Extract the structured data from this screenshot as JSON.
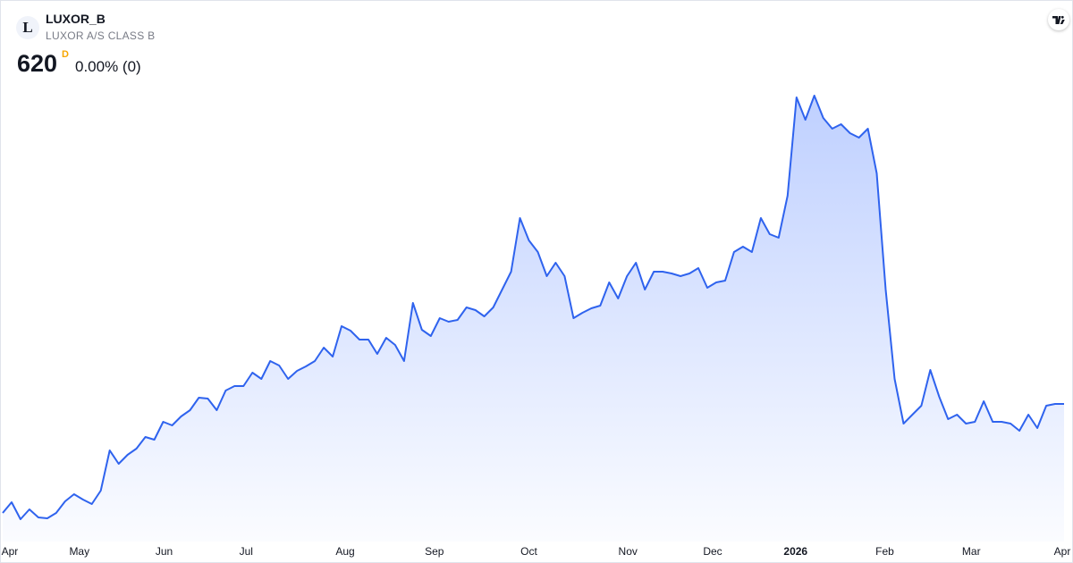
{
  "header": {
    "logo_letter": "L",
    "symbol": "LUXOR_B",
    "name": "LUXOR A/S CLASS B",
    "price": "620",
    "interval": "D",
    "change": "0.00% (0)"
  },
  "chart_data": {
    "type": "area",
    "series": [
      {
        "name": "LUXOR_B",
        "color": "#2f63ee",
        "values": [
          376,
          400,
          362,
          384,
          366,
          364,
          376,
          402,
          418,
          406,
          396,
          426,
          516,
          486,
          506,
          520,
          546,
          540,
          580,
          572,
          592,
          606,
          634,
          632,
          606,
          650,
          660,
          660,
          690,
          676,
          716,
          706,
          676,
          694,
          704,
          716,
          746,
          726,
          794,
          784,
          764,
          764,
          732,
          768,
          752,
          716,
          846,
          786,
          772,
          812,
          804,
          808,
          836,
          830,
          816,
          836,
          876,
          916,
          1036,
          986,
          960,
          906,
          936,
          906,
          812,
          824,
          834,
          840,
          892,
          856,
          906,
          936,
          876,
          916,
          916,
          912,
          906,
          912,
          924,
          880,
          892,
          896,
          960,
          972,
          960,
          1036,
          1000,
          992,
          1086,
          1306,
          1256,
          1310,
          1260,
          1236,
          1246,
          1226,
          1216,
          1236,
          1136,
          876,
          676,
          576,
          596,
          616,
          696,
          636,
          586,
          596,
          576,
          580,
          626,
          580,
          580,
          576,
          560,
          596,
          566,
          616,
          620,
          620
        ]
      }
    ],
    "xlim": [
      0,
      119
    ],
    "xticks": [
      {
        "value": 0.8,
        "label": "Apr"
      },
      {
        "value": 8.6,
        "label": "May"
      },
      {
        "value": 18.1,
        "label": "Jun"
      },
      {
        "value": 27.3,
        "label": "Jul"
      },
      {
        "value": 38.4,
        "label": "Aug"
      },
      {
        "value": 48.4,
        "label": "Sep"
      },
      {
        "value": 59.0,
        "label": "Oct"
      },
      {
        "value": 70.1,
        "label": "Nov"
      },
      {
        "value": 79.6,
        "label": "Dec"
      },
      {
        "value": 88.9,
        "label": "2026",
        "bold": true
      },
      {
        "value": 98.9,
        "label": "Feb"
      },
      {
        "value": 108.6,
        "label": "Mar"
      },
      {
        "value": 118.8,
        "label": "Apr"
      }
    ],
    "ylim": [
      300,
      1340
    ]
  }
}
